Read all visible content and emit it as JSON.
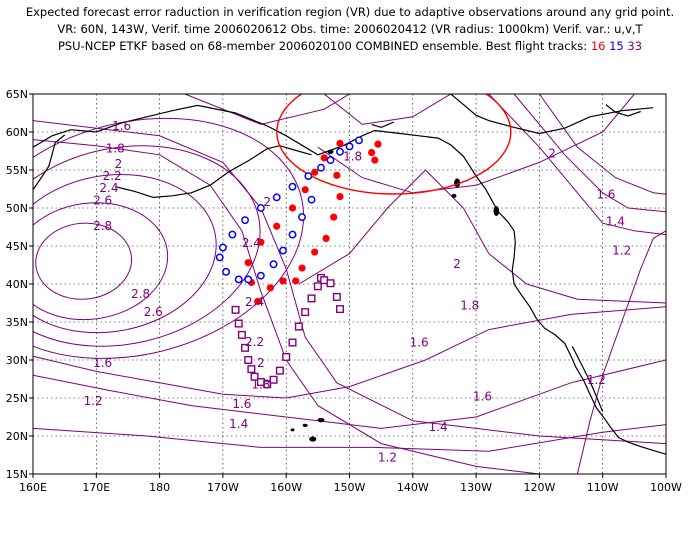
{
  "title": {
    "line1": "Expected forecast error raduction in verification region (VR) due to adaptive observations around any grid point.",
    "line2": "VR: 60N, 143W, Verif. time 2006020612  Obs. time: 2006020412 (VR radius: 1000km)   Verif. var.: u,v,T",
    "line3_prefix": "PSU-NCEP ETKF based on 68-member 2006020100 COMBINED ensemble.  Best flight tracks: ",
    "tracks": [
      {
        "label": "16",
        "color": "#ff0000"
      },
      {
        "label": "15",
        "color": "#0000ff"
      },
      {
        "label": "33",
        "color": "#800080"
      }
    ]
  },
  "axes": {
    "x_ticks": [
      "160E",
      "170E",
      "180",
      "170W",
      "160W",
      "150W",
      "140W",
      "130W",
      "120W",
      "110W",
      "100W"
    ],
    "y_ticks": [
      "65N",
      "60N",
      "55N",
      "50N",
      "45N",
      "40N",
      "35N",
      "30N",
      "25N",
      "20N",
      "15N"
    ],
    "lon_range": [
      160,
      260
    ],
    "lat_range": [
      15,
      65
    ]
  },
  "verification_region": {
    "center_lon": 217,
    "center_lat": 60,
    "color": "#ff0000"
  },
  "contour_labels": [
    {
      "text": "1.6",
      "lon": 174,
      "lat": 60.8
    },
    {
      "text": "1.8",
      "lon": 173,
      "lat": 57.8
    },
    {
      "text": "2",
      "lon": 173.5,
      "lat": 55.8
    },
    {
      "text": "2.2",
      "lon": 172.5,
      "lat": 54.2
    },
    {
      "text": "2.4",
      "lon": 172,
      "lat": 52.6
    },
    {
      "text": "2.6",
      "lon": 171,
      "lat": 51
    },
    {
      "text": "2.8",
      "lon": 171,
      "lat": 47.6
    },
    {
      "text": "2",
      "lon": 197,
      "lat": 50.8
    },
    {
      "text": "2.4",
      "lon": 194.5,
      "lat": 45.4
    },
    {
      "text": "2.8",
      "lon": 177,
      "lat": 38.7
    },
    {
      "text": "2.6",
      "lon": 179,
      "lat": 36.3
    },
    {
      "text": "2.4",
      "lon": 195,
      "lat": 37.6
    },
    {
      "text": "2.2",
      "lon": 195,
      "lat": 32.4
    },
    {
      "text": "2",
      "lon": 196,
      "lat": 29.6
    },
    {
      "text": "1.8",
      "lon": 196,
      "lat": 26.8
    },
    {
      "text": "1.6",
      "lon": 171,
      "lat": 29.6
    },
    {
      "text": "1.2",
      "lon": 169.5,
      "lat": 24.6
    },
    {
      "text": "1.6",
      "lon": 193,
      "lat": 24.2
    },
    {
      "text": "1.4",
      "lon": 192.5,
      "lat": 21.6
    },
    {
      "text": "1.2",
      "lon": 216,
      "lat": 17.2
    },
    {
      "text": "1.4",
      "lon": 224,
      "lat": 21.2
    },
    {
      "text": "1.6",
      "lon": 231,
      "lat": 25.2
    },
    {
      "text": "1.6",
      "lon": 221,
      "lat": 32.3
    },
    {
      "text": "1.8",
      "lon": 229,
      "lat": 37.2
    },
    {
      "text": "2",
      "lon": 227,
      "lat": 42.6
    },
    {
      "text": "2",
      "lon": 242,
      "lat": 57.2
    },
    {
      "text": "1.8",
      "lon": 210.5,
      "lat": 56.8
    },
    {
      "text": "1.6",
      "lon": 250.5,
      "lat": 51.8
    },
    {
      "text": "1.4",
      "lon": 252,
      "lat": 48.2
    },
    {
      "text": "1.2",
      "lon": 253,
      "lat": 44.4
    },
    {
      "text": "1.2",
      "lon": 249,
      "lat": 27.4
    }
  ],
  "tracks": [
    {
      "id": 16,
      "color": "#ff0000",
      "marker": "dot",
      "points": [
        [
          214.5,
          58.4
        ],
        [
          213.5,
          57.3
        ],
        [
          214,
          56.3
        ],
        [
          208.5,
          58.5
        ],
        [
          206,
          56.6
        ],
        [
          204.5,
          54.7
        ],
        [
          203,
          52.4
        ],
        [
          201,
          50
        ],
        [
          198.5,
          47.6
        ],
        [
          196,
          45.5
        ],
        [
          194,
          42.8
        ],
        [
          194.5,
          40.2
        ],
        [
          195.5,
          37.7
        ],
        [
          197.5,
          39.5
        ],
        [
          199.5,
          40.4
        ],
        [
          201.5,
          40.4
        ],
        [
          202.5,
          42.1
        ],
        [
          204.5,
          44.2
        ],
        [
          206.3,
          46
        ],
        [
          207.5,
          48.8
        ],
        [
          208.5,
          51.5
        ],
        [
          208,
          54.3
        ]
      ]
    },
    {
      "id": 15,
      "color": "#0000ff",
      "marker": "circle",
      "points": [
        [
          211.5,
          58.9
        ],
        [
          210,
          58.1
        ],
        [
          208.5,
          57.4
        ],
        [
          207,
          56.3
        ],
        [
          205.5,
          55.3
        ],
        [
          203.5,
          54.2
        ],
        [
          201,
          52.8
        ],
        [
          198.5,
          51.4
        ],
        [
          196,
          50
        ],
        [
          193.5,
          48.4
        ],
        [
          191.5,
          46.5
        ],
        [
          190,
          44.8
        ],
        [
          189.5,
          43.5
        ],
        [
          190.5,
          41.6
        ],
        [
          192.5,
          40.6
        ],
        [
          194,
          40.6
        ],
        [
          196,
          41.1
        ],
        [
          198,
          42.6
        ],
        [
          199.5,
          44.4
        ],
        [
          201,
          46.5
        ],
        [
          202.5,
          48.8
        ],
        [
          204,
          51.1
        ]
      ]
    },
    {
      "id": 33,
      "color": "#800080",
      "marker": "square",
      "points": [
        [
          192,
          36.6
        ],
        [
          192.5,
          34.8
        ],
        [
          193,
          33.3
        ],
        [
          193.5,
          31.6
        ],
        [
          194,
          30
        ],
        [
          194.5,
          28.8
        ],
        [
          195,
          27.8
        ],
        [
          196,
          27.1
        ],
        [
          197,
          26.8
        ],
        [
          198,
          27.4
        ],
        [
          199,
          28.6
        ],
        [
          200,
          30.4
        ],
        [
          201,
          32.3
        ],
        [
          202,
          34.4
        ],
        [
          203,
          36.3
        ],
        [
          204,
          38.1
        ],
        [
          205,
          39.7
        ],
        [
          205.5,
          40.8
        ],
        [
          206,
          40.5
        ],
        [
          207,
          40.1
        ],
        [
          208,
          38.3
        ],
        [
          208.5,
          36.7
        ]
      ]
    }
  ],
  "colors": {
    "contour": "#800080",
    "grid": "#000000",
    "coast": "#000000"
  }
}
